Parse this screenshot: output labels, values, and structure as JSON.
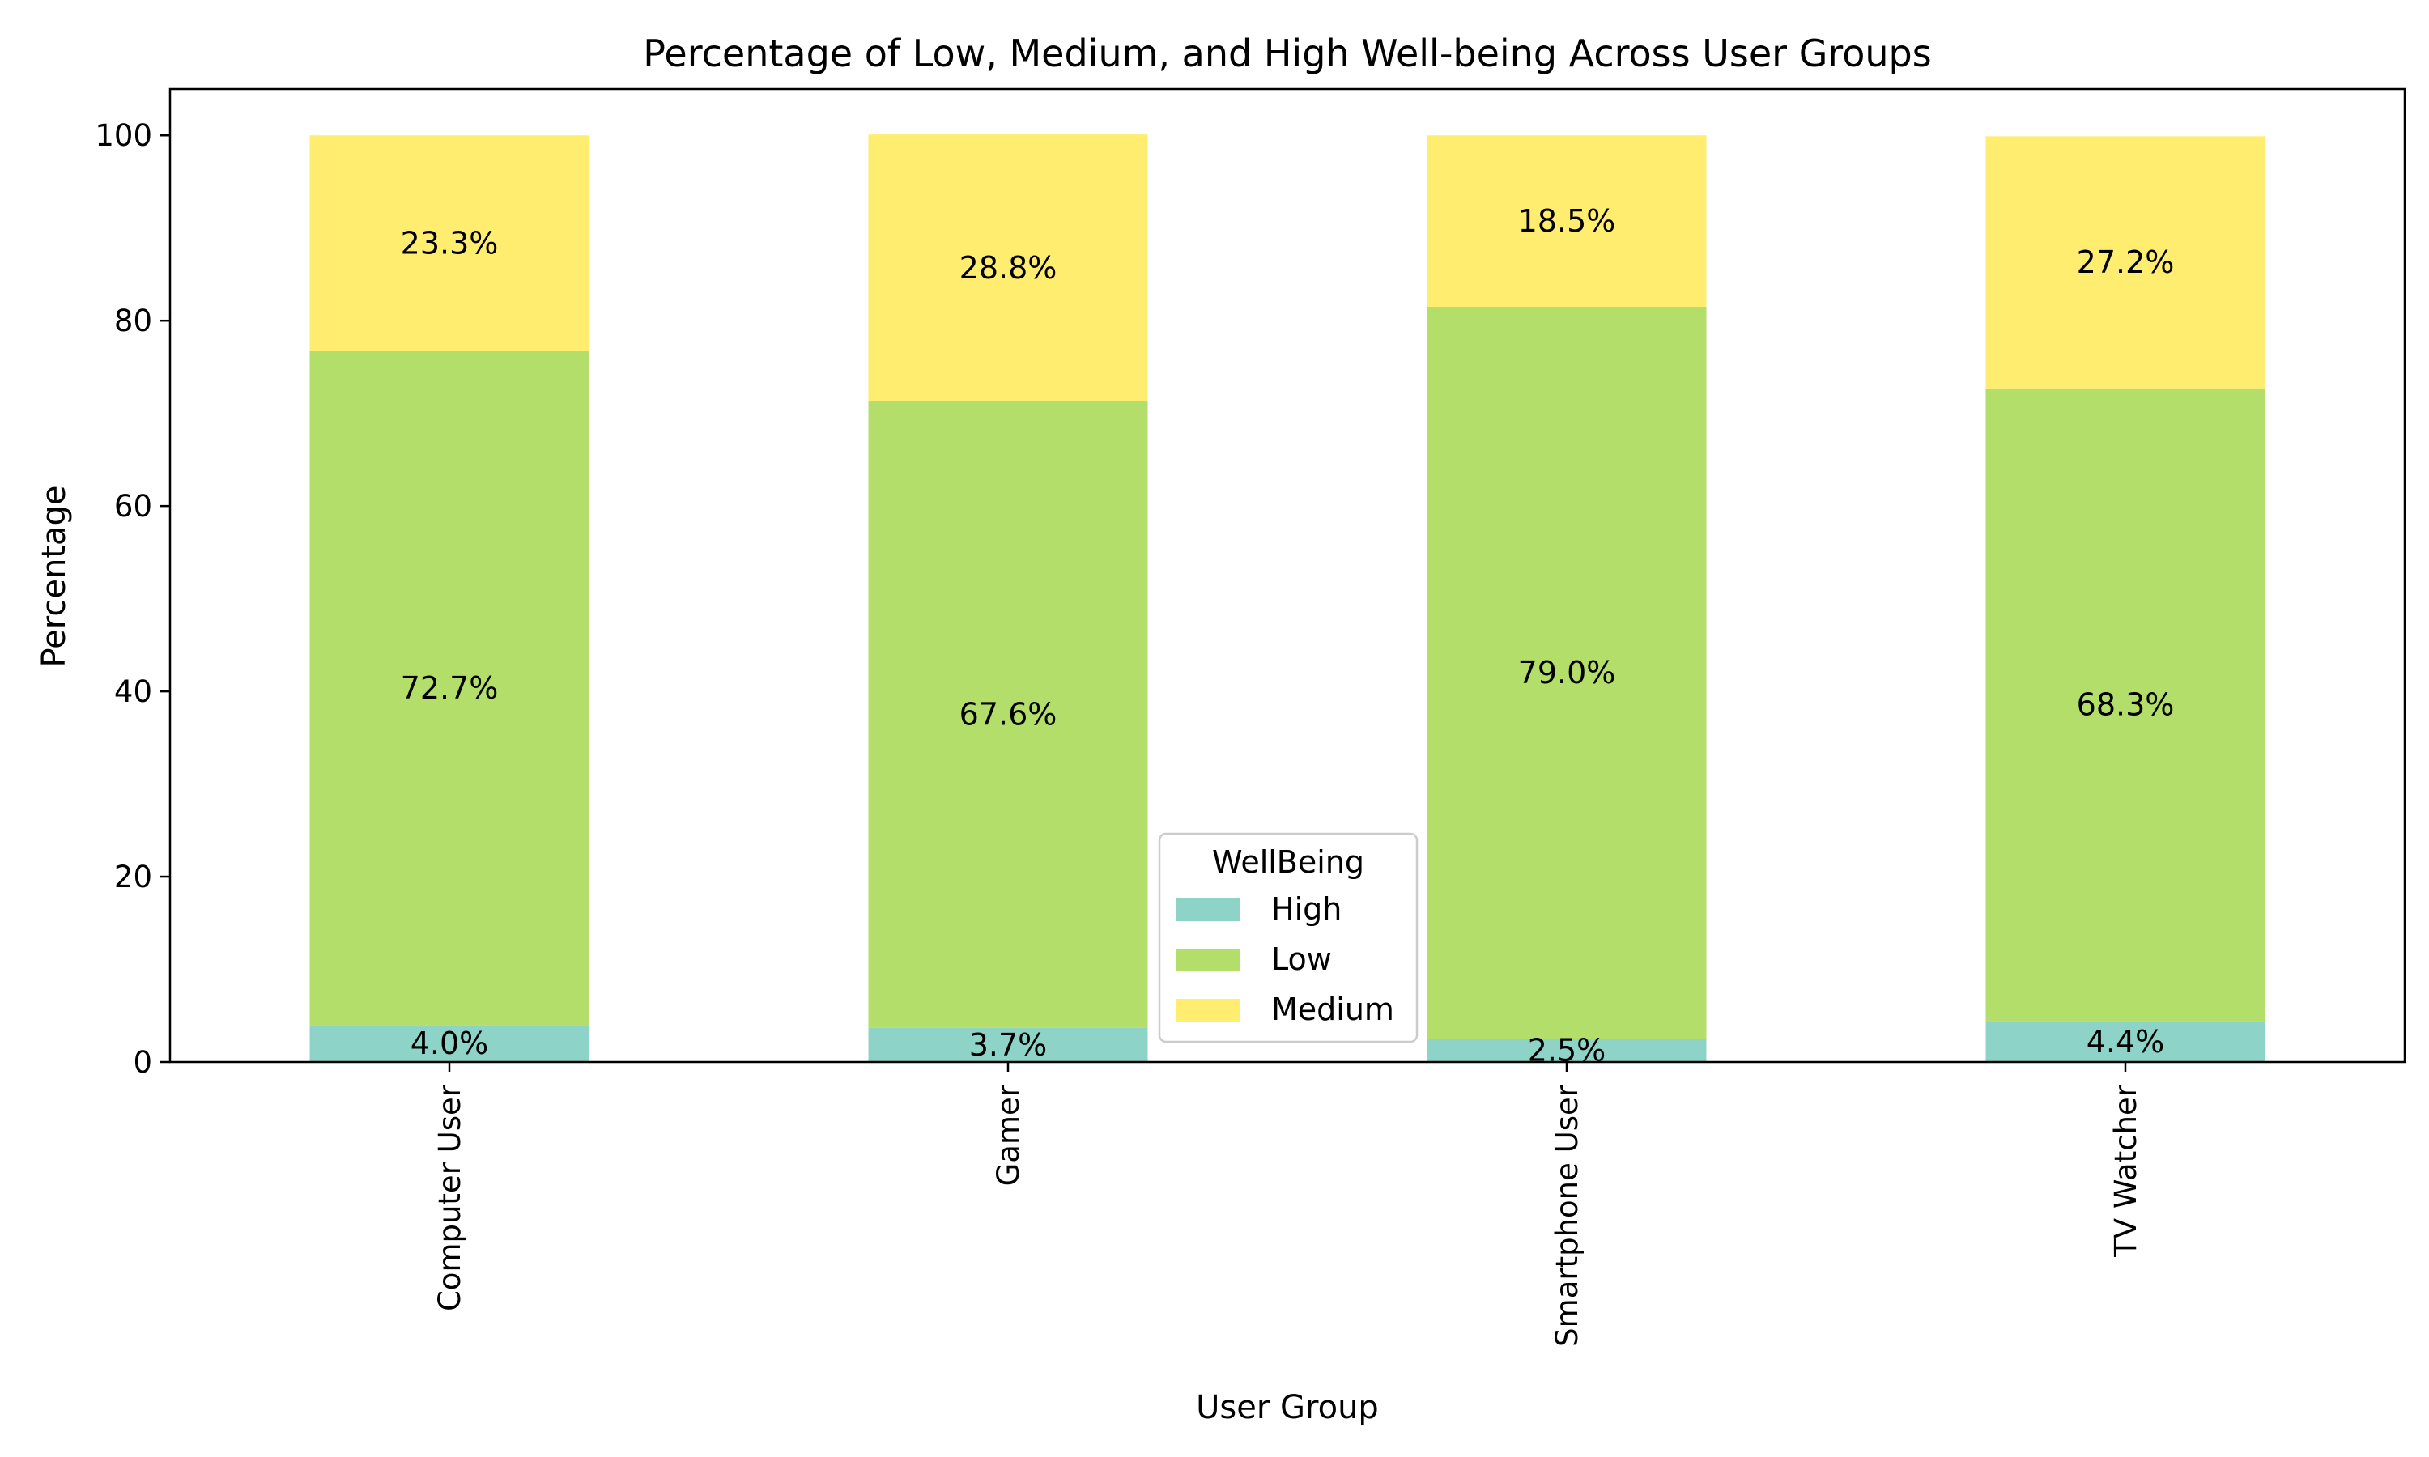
{
  "chart_data": {
    "type": "bar",
    "stacked": true,
    "title": "Percentage of Low, Medium, and High Well-being Across User Groups",
    "xlabel": "User Group",
    "ylabel": "Percentage",
    "ylim": [
      0,
      105
    ],
    "yticks": [
      0,
      20,
      40,
      60,
      80,
      100
    ],
    "grid": false,
    "categories": [
      "Computer User",
      "Gamer",
      "Smartphone User",
      "TV Watcher"
    ],
    "series": [
      {
        "name": "High",
        "color": "#8dd3c7",
        "values": [
          4.0,
          3.7,
          2.5,
          4.4
        ]
      },
      {
        "name": "Low",
        "color": "#b3de69",
        "values": [
          72.7,
          67.6,
          79.0,
          68.3
        ]
      },
      {
        "name": "Medium",
        "color": "#ffed6f",
        "values": [
          23.3,
          28.8,
          18.5,
          27.2
        ]
      }
    ],
    "legend": {
      "title": "WellBeing",
      "placement": "lower-center"
    }
  }
}
